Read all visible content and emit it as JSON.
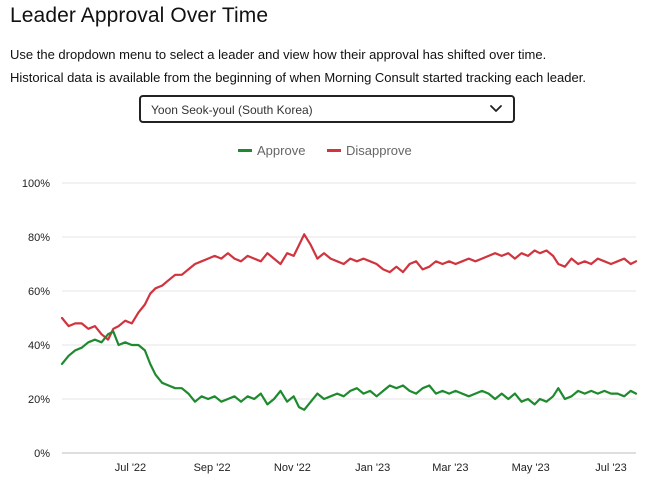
{
  "header": {
    "title": "Leader Approval Over Time",
    "description_line1": "Use the dropdown menu to select a leader and view how their approval has shifted over time.",
    "description_line2": "Historical data is available from the beginning of when Morning Consult started tracking each leader."
  },
  "dropdown": {
    "selected": "Yoon Seok-youl (South Korea)",
    "icon": "chevron-down-icon"
  },
  "colors": {
    "approve": "#1e8a2e",
    "disapprove": "#d0343e",
    "grid": "#e6e6e6"
  },
  "chart_data": {
    "type": "line",
    "title": "",
    "xlabel": "",
    "ylabel": "",
    "ylim": [
      0,
      100
    ],
    "y_ticks": [
      0,
      20,
      40,
      60,
      80,
      100
    ],
    "y_tick_labels": [
      "0%",
      "20%",
      "40%",
      "60%",
      "80%",
      "100%"
    ],
    "x_domain": [
      "2022-05-10",
      "2023-07-20"
    ],
    "x_ticks": [
      {
        "date": "2022-07-01",
        "label": "Jul '22"
      },
      {
        "date": "2022-09-01",
        "label": "Sep '22"
      },
      {
        "date": "2022-11-01",
        "label": "Nov '22"
      },
      {
        "date": "2023-01-01",
        "label": "Jan '23"
      },
      {
        "date": "2023-03-01",
        "label": "Mar '23"
      },
      {
        "date": "2023-05-01",
        "label": "May '23"
      },
      {
        "date": "2023-07-01",
        "label": "Jul '23"
      }
    ],
    "legend": [
      "Approve",
      "Disapprove"
    ],
    "legend_position": "top-center",
    "series": [
      {
        "name": "Approve",
        "color": "#1e8a2e",
        "points": [
          [
            "2022-05-10",
            33
          ],
          [
            "2022-05-15",
            36
          ],
          [
            "2022-05-20",
            38
          ],
          [
            "2022-05-25",
            39
          ],
          [
            "2022-05-30",
            41
          ],
          [
            "2022-06-04",
            42
          ],
          [
            "2022-06-09",
            41
          ],
          [
            "2022-06-14",
            44
          ],
          [
            "2022-06-18",
            45
          ],
          [
            "2022-06-22",
            40
          ],
          [
            "2022-06-27",
            41
          ],
          [
            "2022-07-02",
            40
          ],
          [
            "2022-07-07",
            40
          ],
          [
            "2022-07-12",
            38
          ],
          [
            "2022-07-16",
            33
          ],
          [
            "2022-07-20",
            29
          ],
          [
            "2022-07-25",
            26
          ],
          [
            "2022-07-30",
            25
          ],
          [
            "2022-08-04",
            24
          ],
          [
            "2022-08-09",
            24
          ],
          [
            "2022-08-14",
            22
          ],
          [
            "2022-08-19",
            19
          ],
          [
            "2022-08-24",
            21
          ],
          [
            "2022-08-29",
            20
          ],
          [
            "2022-09-03",
            21
          ],
          [
            "2022-09-08",
            19
          ],
          [
            "2022-09-13",
            20
          ],
          [
            "2022-09-18",
            21
          ],
          [
            "2022-09-23",
            19
          ],
          [
            "2022-09-28",
            21
          ],
          [
            "2022-10-03",
            20
          ],
          [
            "2022-10-08",
            22
          ],
          [
            "2022-10-13",
            18
          ],
          [
            "2022-10-18",
            20
          ],
          [
            "2022-10-23",
            23
          ],
          [
            "2022-10-28",
            19
          ],
          [
            "2022-11-02",
            21
          ],
          [
            "2022-11-06",
            17
          ],
          [
            "2022-11-10",
            16
          ],
          [
            "2022-11-15",
            19
          ],
          [
            "2022-11-20",
            22
          ],
          [
            "2022-11-25",
            20
          ],
          [
            "2022-11-30",
            21
          ],
          [
            "2022-12-05",
            22
          ],
          [
            "2022-12-10",
            21
          ],
          [
            "2022-12-15",
            23
          ],
          [
            "2022-12-20",
            24
          ],
          [
            "2022-12-25",
            22
          ],
          [
            "2022-12-30",
            23
          ],
          [
            "2023-01-04",
            21
          ],
          [
            "2023-01-09",
            23
          ],
          [
            "2023-01-14",
            25
          ],
          [
            "2023-01-19",
            24
          ],
          [
            "2023-01-24",
            25
          ],
          [
            "2023-01-29",
            23
          ],
          [
            "2023-02-03",
            22
          ],
          [
            "2023-02-08",
            24
          ],
          [
            "2023-02-13",
            25
          ],
          [
            "2023-02-18",
            22
          ],
          [
            "2023-02-23",
            23
          ],
          [
            "2023-02-28",
            22
          ],
          [
            "2023-03-05",
            23
          ],
          [
            "2023-03-10",
            22
          ],
          [
            "2023-03-15",
            21
          ],
          [
            "2023-03-20",
            22
          ],
          [
            "2023-03-25",
            23
          ],
          [
            "2023-03-30",
            22
          ],
          [
            "2023-04-04",
            20
          ],
          [
            "2023-04-09",
            22
          ],
          [
            "2023-04-14",
            20
          ],
          [
            "2023-04-19",
            22
          ],
          [
            "2023-04-24",
            19
          ],
          [
            "2023-04-29",
            20
          ],
          [
            "2023-05-04",
            18
          ],
          [
            "2023-05-08",
            20
          ],
          [
            "2023-05-13",
            19
          ],
          [
            "2023-05-18",
            21
          ],
          [
            "2023-05-22",
            24
          ],
          [
            "2023-05-27",
            20
          ],
          [
            "2023-06-01",
            21
          ],
          [
            "2023-06-06",
            23
          ],
          [
            "2023-06-11",
            22
          ],
          [
            "2023-06-16",
            23
          ],
          [
            "2023-06-21",
            22
          ],
          [
            "2023-06-26",
            23
          ],
          [
            "2023-07-01",
            22
          ],
          [
            "2023-07-06",
            22
          ],
          [
            "2023-07-11",
            21
          ],
          [
            "2023-07-16",
            23
          ],
          [
            "2023-07-20",
            22
          ]
        ]
      },
      {
        "name": "Disapprove",
        "color": "#d0343e",
        "points": [
          [
            "2022-05-10",
            50
          ],
          [
            "2022-05-15",
            47
          ],
          [
            "2022-05-20",
            48
          ],
          [
            "2022-05-25",
            48
          ],
          [
            "2022-05-30",
            46
          ],
          [
            "2022-06-04",
            47
          ],
          [
            "2022-06-09",
            44
          ],
          [
            "2022-06-14",
            42
          ],
          [
            "2022-06-18",
            46
          ],
          [
            "2022-06-22",
            47
          ],
          [
            "2022-06-27",
            49
          ],
          [
            "2022-07-02",
            48
          ],
          [
            "2022-07-07",
            52
          ],
          [
            "2022-07-12",
            55
          ],
          [
            "2022-07-16",
            59
          ],
          [
            "2022-07-20",
            61
          ],
          [
            "2022-07-25",
            62
          ],
          [
            "2022-07-30",
            64
          ],
          [
            "2022-08-04",
            66
          ],
          [
            "2022-08-09",
            66
          ],
          [
            "2022-08-14",
            68
          ],
          [
            "2022-08-19",
            70
          ],
          [
            "2022-08-24",
            71
          ],
          [
            "2022-08-29",
            72
          ],
          [
            "2022-09-03",
            73
          ],
          [
            "2022-09-08",
            72
          ],
          [
            "2022-09-13",
            74
          ],
          [
            "2022-09-18",
            72
          ],
          [
            "2022-09-23",
            71
          ],
          [
            "2022-09-28",
            73
          ],
          [
            "2022-10-03",
            72
          ],
          [
            "2022-10-08",
            71
          ],
          [
            "2022-10-13",
            74
          ],
          [
            "2022-10-18",
            72
          ],
          [
            "2022-10-23",
            70
          ],
          [
            "2022-10-28",
            74
          ],
          [
            "2022-11-02",
            73
          ],
          [
            "2022-11-06",
            77
          ],
          [
            "2022-11-10",
            81
          ],
          [
            "2022-11-15",
            77
          ],
          [
            "2022-11-20",
            72
          ],
          [
            "2022-11-25",
            74
          ],
          [
            "2022-11-30",
            72
          ],
          [
            "2022-12-05",
            71
          ],
          [
            "2022-12-10",
            70
          ],
          [
            "2022-12-15",
            72
          ],
          [
            "2022-12-20",
            71
          ],
          [
            "2022-12-25",
            72
          ],
          [
            "2022-12-30",
            71
          ],
          [
            "2023-01-04",
            70
          ],
          [
            "2023-01-09",
            68
          ],
          [
            "2023-01-14",
            67
          ],
          [
            "2023-01-19",
            69
          ],
          [
            "2023-01-24",
            67
          ],
          [
            "2023-01-29",
            70
          ],
          [
            "2023-02-03",
            71
          ],
          [
            "2023-02-08",
            68
          ],
          [
            "2023-02-13",
            69
          ],
          [
            "2023-02-18",
            71
          ],
          [
            "2023-02-23",
            70
          ],
          [
            "2023-02-28",
            71
          ],
          [
            "2023-03-05",
            70
          ],
          [
            "2023-03-10",
            71
          ],
          [
            "2023-03-15",
            72
          ],
          [
            "2023-03-20",
            71
          ],
          [
            "2023-03-25",
            72
          ],
          [
            "2023-03-30",
            73
          ],
          [
            "2023-04-04",
            74
          ],
          [
            "2023-04-09",
            73
          ],
          [
            "2023-04-14",
            74
          ],
          [
            "2023-04-19",
            72
          ],
          [
            "2023-04-24",
            74
          ],
          [
            "2023-04-29",
            73
          ],
          [
            "2023-05-04",
            75
          ],
          [
            "2023-05-08",
            74
          ],
          [
            "2023-05-13",
            75
          ],
          [
            "2023-05-18",
            73
          ],
          [
            "2023-05-22",
            70
          ],
          [
            "2023-05-27",
            69
          ],
          [
            "2023-06-01",
            72
          ],
          [
            "2023-06-06",
            70
          ],
          [
            "2023-06-11",
            71
          ],
          [
            "2023-06-16",
            70
          ],
          [
            "2023-06-21",
            72
          ],
          [
            "2023-06-26",
            71
          ],
          [
            "2023-07-01",
            70
          ],
          [
            "2023-07-06",
            71
          ],
          [
            "2023-07-11",
            72
          ],
          [
            "2023-07-16",
            70
          ],
          [
            "2023-07-20",
            71
          ]
        ]
      }
    ]
  }
}
